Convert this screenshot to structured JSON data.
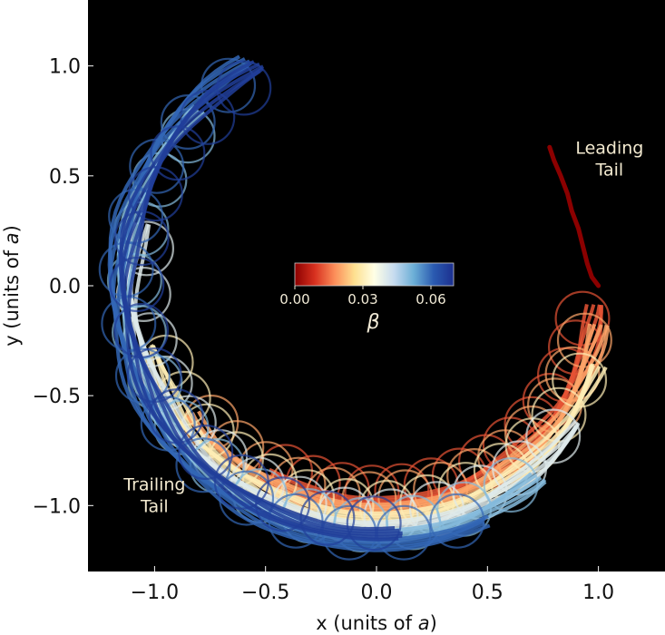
{
  "chart_data": {
    "type": "scatter",
    "description_of_series": "stream trajectories colored by beta",
    "xlabel": {
      "prefix": "x (units of ",
      "italic": "a",
      "suffix": ")"
    },
    "ylabel": {
      "prefix": "y (units of ",
      "italic": "a",
      "suffix": ")"
    },
    "xlim": [
      -1.3,
      1.3
    ],
    "ylim": [
      -1.3,
      1.3
    ],
    "xticks": [
      -1.0,
      -0.5,
      0.0,
      0.5,
      1.0
    ],
    "xtick_labels": [
      "−1.0",
      "−0.5",
      "0.0",
      "0.5",
      "1.0"
    ],
    "yticks": [
      1.0,
      0.5,
      0.0,
      -0.5,
      -1.0
    ],
    "ytick_labels": [
      "1.0",
      "0.5",
      "0.0",
      "−0.5",
      "−1.0"
    ],
    "background": "#000000",
    "grid": false,
    "annotations": [
      {
        "lines": [
          "Leading",
          "Tail"
        ],
        "x": 1.05,
        "y": 0.6
      },
      {
        "lines": [
          "Trailing",
          "Tail"
        ],
        "x": -1.0,
        "y": -0.93
      }
    ],
    "colorbar": {
      "label": "β",
      "range": [
        0.0,
        0.07
      ],
      "ticks": [
        0.0,
        0.03,
        0.06
      ],
      "tick_labels": [
        "0.00",
        "0.03",
        "0.06"
      ],
      "colormap": [
        "#8b0000",
        "#d7301f",
        "#fc8d59",
        "#fee090",
        "#ffffe6",
        "#c6dbef",
        "#6baed6",
        "#2a5ab0",
        "#1c2f8f"
      ]
    },
    "leading_tail": {
      "beta": 0.0,
      "points": [
        [
          0.78,
          0.63
        ],
        [
          0.8,
          0.57
        ],
        [
          0.83,
          0.5
        ],
        [
          0.86,
          0.42
        ],
        [
          0.88,
          0.34
        ],
        [
          0.91,
          0.26
        ],
        [
          0.93,
          0.18
        ],
        [
          0.95,
          0.1
        ],
        [
          0.97,
          0.04
        ],
        [
          1.0,
          0.0
        ]
      ]
    },
    "stream_arcs": [
      {
        "beta": 0.012,
        "r": 0.99,
        "theta_start": -5,
        "theta_end": -120
      },
      {
        "beta": 0.02,
        "r": 1.02,
        "theta_start": -10,
        "theta_end": -145
      },
      {
        "beta": 0.03,
        "r": 1.06,
        "theta_start": -20,
        "theta_end": -165
      },
      {
        "beta": 0.04,
        "r": 1.1,
        "theta_start": -35,
        "theta_end": -195
      },
      {
        "beta": 0.05,
        "r": 1.14,
        "theta_start": -50,
        "theta_end": -225
      },
      {
        "beta": 0.06,
        "r": 1.18,
        "theta_start": -65,
        "theta_end": -240
      },
      {
        "beta": 0.067,
        "r": 1.13,
        "theta_start": -85,
        "theta_end": -242
      }
    ]
  }
}
